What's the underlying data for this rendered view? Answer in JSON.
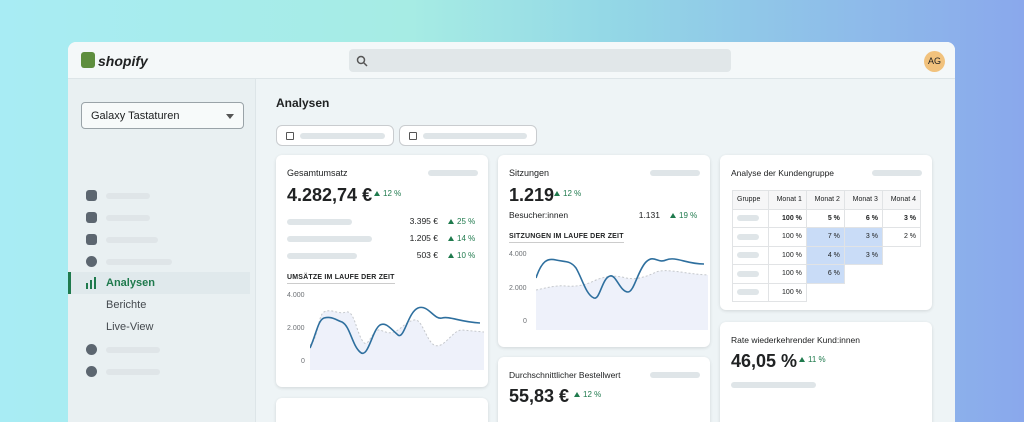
{
  "topbar": {
    "logo": "shopify",
    "avatar": "AG"
  },
  "sidebar": {
    "store": "Galaxy Tastaturen",
    "nav": [
      "Analysen",
      "Berichte",
      "Live-View"
    ]
  },
  "page_title": "Analysen",
  "cards": {
    "sales": {
      "title": "Gesamtumsatz",
      "value": "4.282,74 €",
      "change": "12 %",
      "rows": [
        {
          "value": "3.395 €",
          "change": "25 %"
        },
        {
          "value": "1.205 €",
          "change": "14 %"
        },
        {
          "value": "503 €",
          "change": "10 %"
        }
      ],
      "chart_title": "UMSÄTZE IM LAUFE DER ZEIT",
      "axis": [
        "4.000",
        "2.000",
        "0"
      ]
    },
    "sessions": {
      "title": "Sitzungen",
      "value": "1.219",
      "change": "12 %",
      "sub_label": "Besucher:innen",
      "sub_value": "1.131",
      "sub_change": "19 %",
      "chart_title": "SITZUNGEN IM LAUFE DER ZEIT",
      "axis": [
        "4.000",
        "2.000",
        "0"
      ]
    },
    "cohort": {
      "title": "Analyse der Kundengruppe",
      "headers": [
        "Gruppe",
        "Monat 1",
        "Monat 2",
        "Monat 3",
        "Monat 4"
      ],
      "rows": [
        [
          "100 %",
          "5 %",
          "6 %",
          "3 %"
        ],
        [
          "100 %",
          "7 %",
          "3 %",
          "2 %"
        ],
        [
          "100 %",
          "4 %",
          "3 %"
        ],
        [
          "100 %",
          "6 %"
        ],
        [
          "100 %"
        ]
      ]
    },
    "returning": {
      "title": "Rate wiederkehrender Kund:innen",
      "value": "46,05 %",
      "change": "11 %"
    },
    "aov": {
      "title": "Durchschnittlicher Bestellwert",
      "value": "55,83 €",
      "change": "12 %"
    }
  }
}
